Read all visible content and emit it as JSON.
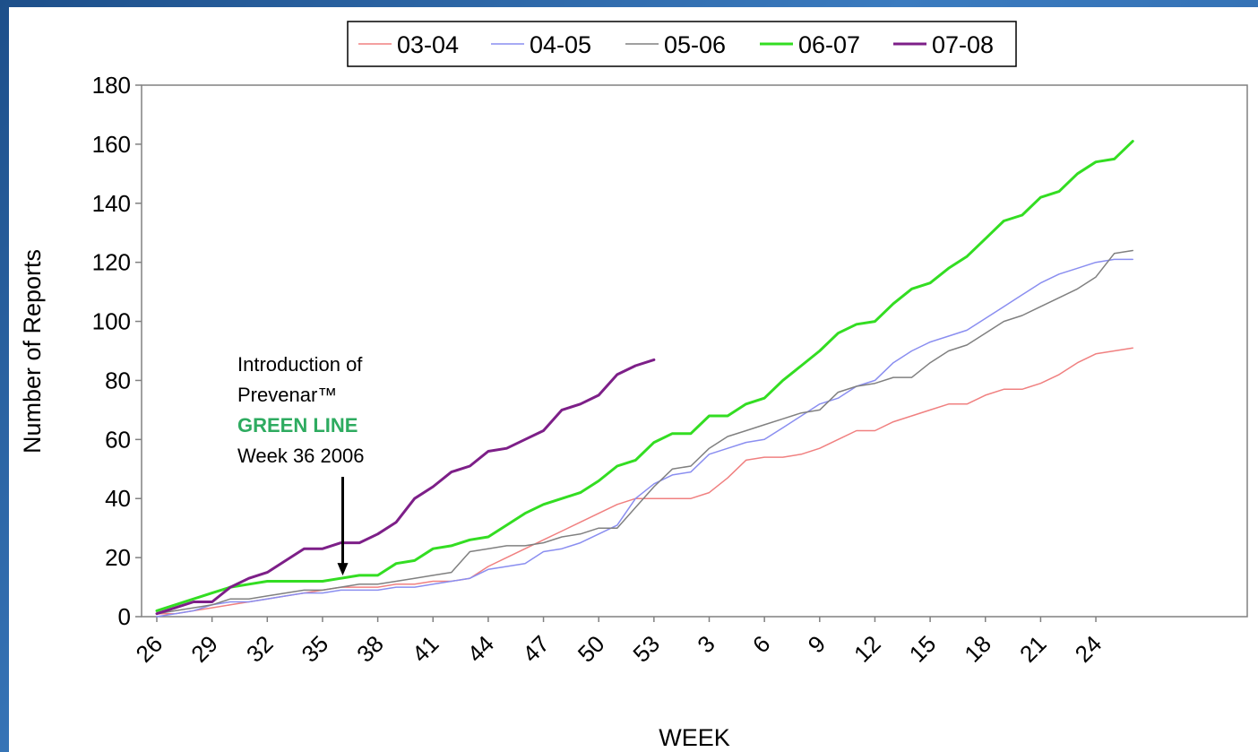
{
  "chart_data": {
    "type": "line",
    "xlabel": "WEEK",
    "ylabel": "Number of Reports",
    "ylim": [
      0,
      180
    ],
    "yticks": [
      0,
      20,
      40,
      60,
      80,
      100,
      120,
      140,
      160,
      180
    ],
    "xtick_labels": [
      "26",
      "29",
      "32",
      "35",
      "38",
      "41",
      "44",
      "47",
      "50",
      "53",
      "3",
      "6",
      "9",
      "12",
      "15",
      "18",
      "21",
      "24"
    ],
    "weeks": [
      "26",
      "27",
      "28",
      "29",
      "30",
      "31",
      "32",
      "33",
      "34",
      "35",
      "36",
      "37",
      "38",
      "39",
      "40",
      "41",
      "42",
      "43",
      "44",
      "45",
      "46",
      "47",
      "48",
      "49",
      "50",
      "51",
      "52",
      "53",
      "1",
      "2",
      "3",
      "4",
      "5",
      "6",
      "7",
      "8",
      "9",
      "10",
      "11",
      "12",
      "13",
      "14",
      "15",
      "16",
      "17",
      "18",
      "19",
      "20",
      "21",
      "22",
      "23",
      "24",
      "25",
      "26"
    ],
    "legend_position": "top",
    "grid": false,
    "series": [
      {
        "name": "03-04",
        "color": "#f08080",
        "width": 1.5,
        "values": [
          1,
          1,
          2,
          3,
          4,
          5,
          6,
          7,
          8,
          9,
          10,
          10,
          10,
          11,
          11,
          12,
          12,
          13,
          17,
          20,
          23,
          26,
          29,
          32,
          35,
          38,
          40,
          40,
          40,
          40,
          42,
          47,
          53,
          54,
          54,
          55,
          57,
          60,
          63,
          63,
          66,
          68,
          70,
          72,
          72,
          75,
          77,
          77,
          79,
          82,
          86,
          89,
          90,
          91
        ]
      },
      {
        "name": "04-05",
        "color": "#8a8ef0",
        "width": 1.5,
        "values": [
          0,
          1,
          2,
          4,
          5,
          5,
          6,
          7,
          8,
          8,
          9,
          9,
          9,
          10,
          10,
          11,
          12,
          13,
          16,
          17,
          18,
          22,
          23,
          25,
          28,
          31,
          40,
          45,
          48,
          49,
          55,
          57,
          59,
          60,
          64,
          68,
          72,
          74,
          78,
          80,
          86,
          90,
          93,
          95,
          97,
          101,
          105,
          109,
          113,
          116,
          118,
          120,
          121,
          121
        ]
      },
      {
        "name": "05-06",
        "color": "#808080",
        "width": 1.5,
        "values": [
          1,
          2,
          3,
          4,
          6,
          6,
          7,
          8,
          9,
          9,
          10,
          11,
          11,
          12,
          13,
          14,
          15,
          22,
          23,
          24,
          24,
          25,
          27,
          28,
          30,
          30,
          37,
          44,
          50,
          51,
          57,
          61,
          63,
          65,
          67,
          69,
          70,
          76,
          78,
          79,
          81,
          81,
          86,
          90,
          92,
          96,
          100,
          102,
          105,
          108,
          111,
          115,
          123,
          124
        ]
      },
      {
        "name": "06-07",
        "color": "#33dd22",
        "width": 3,
        "values": [
          2,
          4,
          6,
          8,
          10,
          11,
          12,
          12,
          12,
          12,
          13,
          14,
          14,
          18,
          19,
          23,
          24,
          26,
          27,
          31,
          35,
          38,
          40,
          42,
          46,
          51,
          53,
          59,
          62,
          62,
          68,
          68,
          72,
          74,
          80,
          85,
          90,
          96,
          99,
          100,
          106,
          111,
          113,
          118,
          122,
          128,
          134,
          136,
          142,
          144,
          150,
          154,
          155,
          161
        ]
      },
      {
        "name": "07-08",
        "color": "#7d1f88",
        "width": 3,
        "values": [
          1,
          3,
          5,
          5,
          10,
          13,
          15,
          19,
          23,
          23,
          25,
          25,
          28,
          32,
          40,
          44,
          49,
          51,
          56,
          57,
          60,
          63,
          70,
          72,
          75,
          82,
          85,
          87
        ]
      }
    ],
    "annotation": {
      "lines": [
        "Introduction of",
        "Prevenar™"
      ],
      "highlight": "GREEN LINE",
      "last": "Week 36 2006",
      "arrow_week_index": 10,
      "arrow_value": 13
    }
  }
}
